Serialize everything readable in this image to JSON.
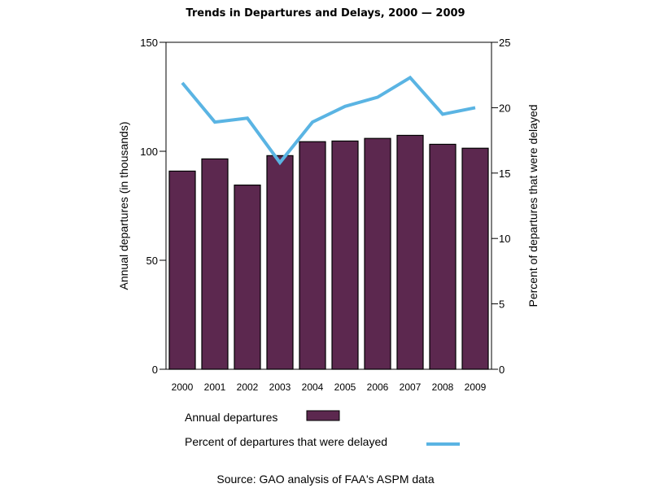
{
  "chart_data": {
    "type": "bar",
    "title": "Trends in Departures and Delays, 2000 — 2009",
    "categories": [
      "2000",
      "2001",
      "2002",
      "2003",
      "2004",
      "2005",
      "2006",
      "2007",
      "2008",
      "2009"
    ],
    "series": [
      {
        "name": "Annual departures",
        "type": "bar",
        "axis": "left",
        "color": "#5c284f",
        "values": [
          90.9,
          96.5,
          84.5,
          98.0,
          104.4,
          104.7,
          105.9,
          107.3,
          103.2,
          101.4
        ]
      },
      {
        "name": "Percent of departures that were delayed",
        "type": "line",
        "axis": "right",
        "color": "#5ab4e3",
        "values": [
          21.9,
          18.9,
          19.2,
          15.8,
          18.9,
          20.1,
          20.8,
          22.3,
          19.5,
          20.0
        ]
      }
    ],
    "ylabel": "Annual departures (in thousands)",
    "y2label": "Percent of departures that were delayed",
    "xlabel": "",
    "ylim": [
      0,
      150
    ],
    "y2lim": [
      0,
      25
    ],
    "yticks": [
      0,
      50,
      100,
      150
    ],
    "y2ticks": [
      0,
      5,
      10,
      15,
      20,
      25
    ],
    "grid": false,
    "legend_position": "bottom",
    "source": "Source: GAO analysis of FAA's ASPM data"
  }
}
